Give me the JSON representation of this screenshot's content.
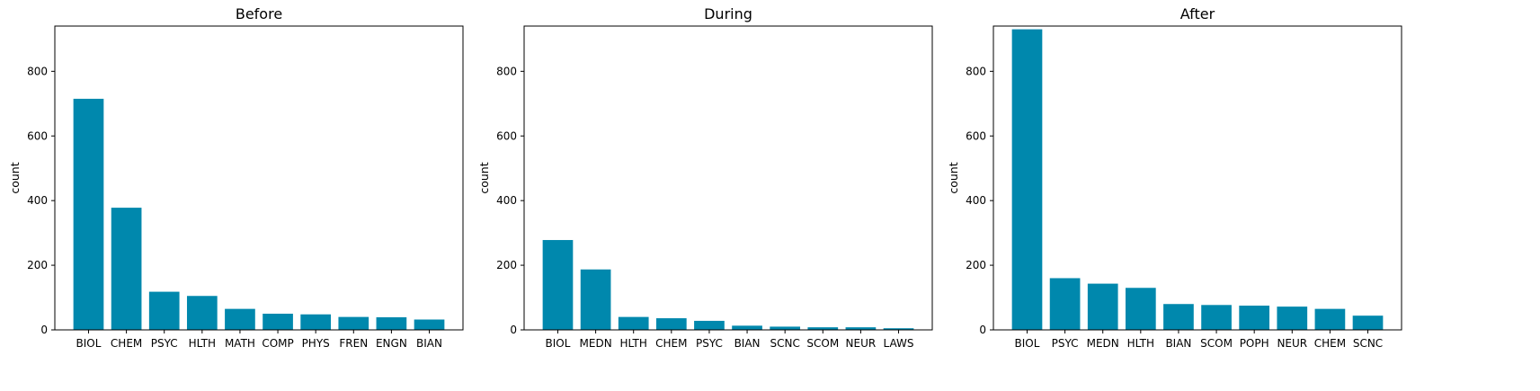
{
  "bar_color": "#0088ad",
  "chart_data": [
    {
      "type": "bar",
      "title": "Before",
      "ylabel": "count",
      "xlabel": "",
      "ylim": [
        0,
        940
      ],
      "yticks": [
        0,
        200,
        400,
        600,
        800
      ],
      "categories": [
        "BIOL",
        "CHEM",
        "PSYC",
        "HLTH",
        "MATH",
        "COMP",
        "PHYS",
        "FREN",
        "ENGN",
        "BIAN"
      ],
      "values": [
        715,
        378,
        118,
        105,
        65,
        50,
        48,
        40,
        39,
        32
      ]
    },
    {
      "type": "bar",
      "title": "During",
      "ylabel": "count",
      "xlabel": "",
      "ylim": [
        0,
        940
      ],
      "yticks": [
        0,
        200,
        400,
        600,
        800
      ],
      "categories": [
        "BIOL",
        "MEDN",
        "HLTH",
        "CHEM",
        "PSYC",
        "BIAN",
        "SCNC",
        "SCOM",
        "NEUR",
        "LAWS"
      ],
      "values": [
        278,
        187,
        40,
        36,
        28,
        13,
        10,
        8,
        8,
        5
      ]
    },
    {
      "type": "bar",
      "title": "After",
      "ylabel": "count",
      "xlabel": "",
      "ylim": [
        0,
        940
      ],
      "yticks": [
        0,
        200,
        400,
        600,
        800
      ],
      "categories": [
        "BIOL",
        "PSYC",
        "MEDN",
        "HLTH",
        "BIAN",
        "SCOM",
        "POPH",
        "NEUR",
        "CHEM",
        "SCNC"
      ],
      "values": [
        930,
        160,
        143,
        130,
        80,
        77,
        75,
        72,
        65,
        44
      ]
    }
  ]
}
